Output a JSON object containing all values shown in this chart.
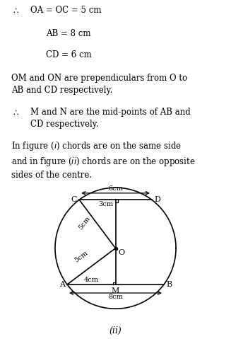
{
  "title": "(ii)",
  "background_color": "#ffffff",
  "line_color": "#000000",
  "font_size_text": 8.5,
  "font_size_label": 8.0,
  "font_size_dim": 7.0,
  "font_size_title": 9.0,
  "R": 5.0,
  "O": [
    0.0,
    0.0
  ],
  "A": [
    -4.0,
    -3.0
  ],
  "B": [
    4.0,
    -3.0
  ],
  "C": [
    -3.0,
    4.0
  ],
  "D": [
    3.0,
    4.0
  ],
  "M": [
    0.0,
    -3.0
  ],
  "N": [
    0.0,
    4.0
  ]
}
